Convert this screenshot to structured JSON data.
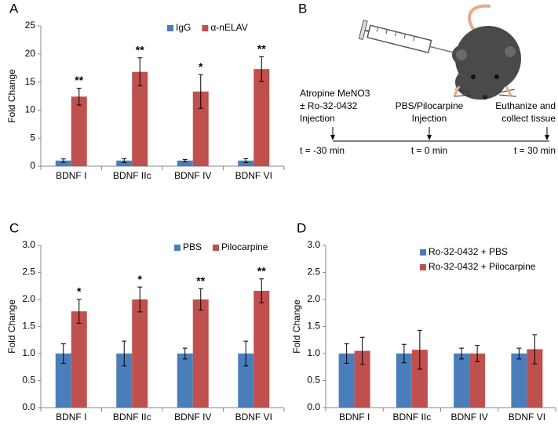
{
  "chart_data": [
    {
      "type": "bar",
      "panel_label": "A",
      "ylabel": "Fold Change",
      "categories": [
        "BDNF I",
        "BDNF IIc",
        "BDNF IV",
        "BDNF VI"
      ],
      "series": [
        {
          "name": "IgG",
          "color": "#4a7ebb",
          "values": [
            1.0,
            1.0,
            1.0,
            1.0
          ],
          "errors": [
            0.3,
            0.35,
            0.2,
            0.35
          ]
        },
        {
          "name": "α-nELAV",
          "color": "#c0504d",
          "values": [
            12.4,
            16.8,
            13.3,
            17.3
          ],
          "errors": [
            1.5,
            2.5,
            3.0,
            2.2
          ],
          "significance": [
            "**",
            "**",
            "*",
            "**"
          ]
        }
      ],
      "ylim": [
        0,
        25
      ],
      "yticks": [
        0,
        5,
        10,
        15,
        20,
        25
      ],
      "legend": "upper right"
    },
    {
      "type": "bar",
      "panel_label": "C",
      "ylabel": "Fold Change",
      "categories": [
        "BDNF I",
        "BDNF IIc",
        "BDNF IV",
        "BDNF VI"
      ],
      "series": [
        {
          "name": "PBS",
          "color": "#4a7ebb",
          "values": [
            1.0,
            1.0,
            1.0,
            1.0
          ],
          "errors": [
            0.18,
            0.23,
            0.1,
            0.23
          ]
        },
        {
          "name": "Pilocarpine",
          "color": "#c0504d",
          "values": [
            1.78,
            2.0,
            2.0,
            2.16
          ],
          "errors": [
            0.22,
            0.23,
            0.2,
            0.22
          ],
          "significance": [
            "*",
            "*",
            "**",
            "**"
          ]
        }
      ],
      "ylim": [
        0,
        3
      ],
      "yticks": [
        {
          "value": 0,
          "label": "0.0"
        },
        {
          "value": 0.5,
          "label": "0.5"
        },
        {
          "value": 1,
          "label": "1.0"
        },
        {
          "value": 1.5,
          "label": "1.5"
        },
        {
          "value": 2,
          "label": "2.0"
        },
        {
          "value": 2.5,
          "label": "2.5"
        },
        {
          "value": 3,
          "label": "3.0"
        }
      ],
      "legend": "upper right"
    },
    {
      "type": "bar",
      "panel_label": "D",
      "ylabel": "Fold Change",
      "categories": [
        "BDNF I",
        "BDNF IIc",
        "BDNF IV",
        "BDNF VI"
      ],
      "series": [
        {
          "name": "Ro-32-0432 + PBS",
          "color": "#4a7ebb",
          "values": [
            1.0,
            1.0,
            1.0,
            1.0
          ],
          "errors": [
            0.18,
            0.17,
            0.1,
            0.1
          ]
        },
        {
          "name": "Ro-32-0432 + Pilocarpine",
          "color": "#c0504d",
          "values": [
            1.05,
            1.07,
            1.0,
            1.08
          ],
          "errors": [
            0.25,
            0.36,
            0.15,
            0.27
          ]
        }
      ],
      "ylim": [
        0,
        3
      ],
      "yticks": [
        {
          "value": 0,
          "label": "0.0"
        },
        {
          "value": 0.5,
          "label": "0.5"
        },
        {
          "value": 1,
          "label": "1.0"
        },
        {
          "value": 1.5,
          "label": "1.5"
        },
        {
          "value": 2,
          "label": "2.0"
        },
        {
          "value": 2.5,
          "label": "2.5"
        },
        {
          "value": 3,
          "label": "3.0"
        }
      ],
      "legend": "upper right"
    }
  ],
  "diagram": {
    "panel_label": "B",
    "events": [
      {
        "lines": [
          "Atropine MeNO3",
          "± Ro-32-0432",
          "Injection"
        ],
        "time": "t = -30 min"
      },
      {
        "lines": [
          "PBS/Pilocarpine",
          "Injection"
        ],
        "time": "t = 0 min"
      },
      {
        "lines": [
          "Euthanize and",
          "collect tissue"
        ],
        "time": "t = 30 min"
      }
    ]
  }
}
